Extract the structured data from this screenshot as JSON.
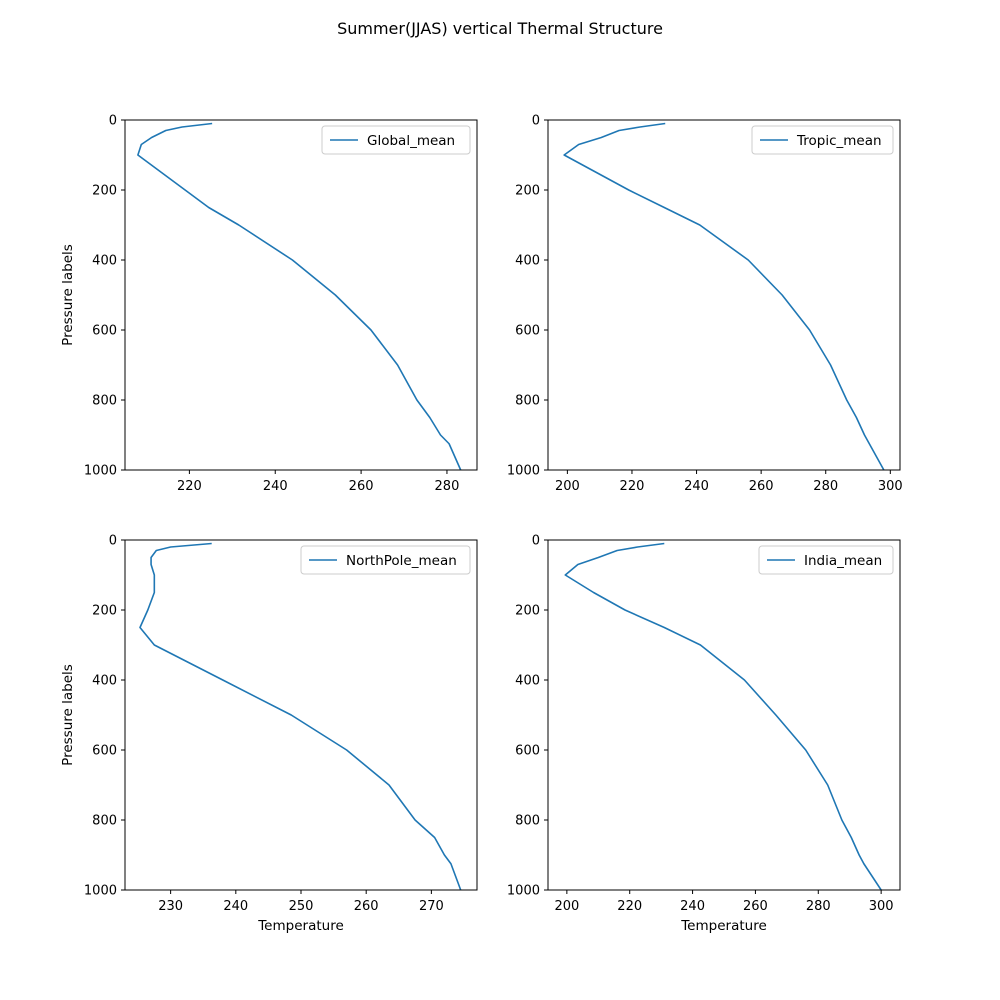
{
  "figure": {
    "suptitle": "Summer(JJAS) vertical Thermal Structure"
  },
  "chart_data": [
    {
      "type": "line",
      "xlabel": "",
      "ylabel": "Pressure labels",
      "xlim": [
        205,
        287
      ],
      "ylim": [
        1000,
        0
      ],
      "y_inverted": true,
      "xticks": [
        220,
        240,
        260,
        280
      ],
      "yticks": [
        0,
        200,
        400,
        600,
        800,
        1000
      ],
      "grid": false,
      "legend_position": "upper right",
      "series": [
        {
          "name": "Global_mean",
          "color": "#1f77b4",
          "x": [
            225.3,
            218.3,
            214.5,
            211.2,
            208.8,
            208.0,
            213.5,
            219.0,
            224.5,
            231.5,
            244.0,
            254.0,
            262.3,
            268.5,
            273.0,
            276.0,
            278.5,
            280.5,
            283.2
          ],
          "y": [
            10,
            20,
            30,
            50,
            70,
            100,
            150,
            200,
            250,
            300,
            400,
            500,
            600,
            700,
            800,
            850,
            900,
            925,
            1000
          ]
        }
      ]
    },
    {
      "type": "line",
      "xlabel": "",
      "ylabel": "",
      "xlim": [
        194,
        303
      ],
      "ylim": [
        1000,
        0
      ],
      "y_inverted": true,
      "xticks": [
        200,
        220,
        240,
        260,
        280,
        300
      ],
      "yticks": [
        0,
        200,
        400,
        600,
        800,
        1000
      ],
      "grid": false,
      "legend_position": "upper right",
      "series": [
        {
          "name": "Tropic_mean",
          "color": "#1f77b4",
          "x": [
            230.3,
            222.5,
            216.0,
            210.5,
            203.5,
            199.0,
            209.0,
            219.0,
            230.0,
            241.0,
            256.0,
            266.5,
            275.0,
            281.5,
            286.5,
            289.5,
            292.0,
            293.5,
            298.0
          ],
          "y": [
            10,
            20,
            30,
            50,
            70,
            100,
            150,
            200,
            250,
            300,
            400,
            500,
            600,
            700,
            800,
            850,
            900,
            925,
            1000
          ]
        }
      ]
    },
    {
      "type": "line",
      "xlabel": "Temperature",
      "ylabel": "Pressure labels",
      "xlim": [
        223,
        277
      ],
      "ylim": [
        1000,
        0
      ],
      "y_inverted": true,
      "xticks": [
        230,
        240,
        250,
        260,
        270
      ],
      "yticks": [
        0,
        200,
        400,
        600,
        800,
        1000
      ],
      "grid": false,
      "legend_position": "upper right",
      "series": [
        {
          "name": "NorthPole_mean",
          "color": "#1f77b4",
          "x": [
            236.3,
            230.0,
            227.8,
            227.0,
            227.0,
            227.5,
            227.5,
            226.5,
            225.3,
            227.5,
            238.0,
            248.5,
            257.0,
            263.5,
            267.5,
            270.5,
            272.0,
            273.0,
            274.5
          ],
          "y": [
            10,
            20,
            30,
            50,
            70,
            100,
            150,
            200,
            250,
            300,
            400,
            500,
            600,
            700,
            800,
            850,
            900,
            925,
            1000
          ]
        }
      ]
    },
    {
      "type": "line",
      "xlabel": "Temperature",
      "ylabel": "",
      "xlim": [
        194,
        306
      ],
      "ylim": [
        1000,
        0
      ],
      "y_inverted": true,
      "xticks": [
        200,
        220,
        240,
        260,
        280,
        300
      ],
      "yticks": [
        0,
        200,
        400,
        600,
        800,
        1000
      ],
      "grid": false,
      "legend_position": "upper right",
      "series": [
        {
          "name": "India_mean",
          "color": "#1f77b4",
          "x": [
            231.0,
            222.5,
            216.0,
            210.0,
            203.5,
            199.5,
            208.5,
            218.5,
            231.0,
            242.5,
            256.5,
            266.5,
            276.0,
            283.0,
            287.5,
            290.5,
            293.0,
            294.5,
            300.0
          ],
          "y": [
            10,
            20,
            30,
            50,
            70,
            100,
            150,
            200,
            250,
            300,
            400,
            500,
            600,
            700,
            800,
            850,
            900,
            925,
            1000
          ]
        }
      ]
    }
  ]
}
